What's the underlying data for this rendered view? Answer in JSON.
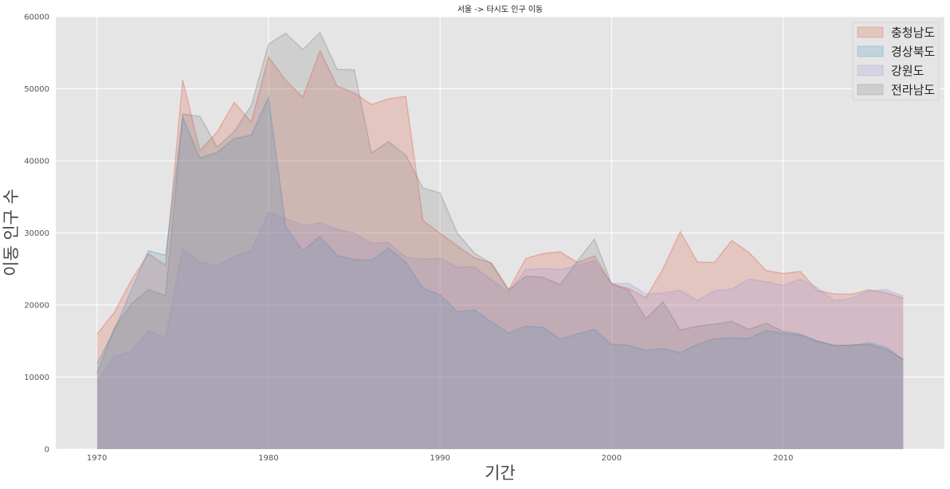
{
  "chart_data": {
    "type": "area",
    "title": "서울 -> 타시도 인구 이동",
    "xlabel": "기간",
    "ylabel": "이동 인구 수",
    "xlim": [
      1967.6,
      2019.4
    ],
    "ylim": [
      0,
      60000
    ],
    "xticks": [
      1970,
      1980,
      1990,
      2000,
      2010
    ],
    "yticks": [
      0,
      10000,
      20000,
      30000,
      40000,
      50000,
      60000
    ],
    "grid": true,
    "stacked": false,
    "legend_position": "top-right",
    "x": [
      1970,
      1971,
      1972,
      1973,
      1974,
      1975,
      1976,
      1977,
      1978,
      1979,
      1980,
      1981,
      1982,
      1983,
      1984,
      1985,
      1986,
      1987,
      1988,
      1989,
      1990,
      1991,
      1992,
      1993,
      1994,
      1995,
      1996,
      1997,
      1998,
      1999,
      2000,
      2001,
      2002,
      2003,
      2004,
      2005,
      2006,
      2007,
      2008,
      2009,
      2010,
      2011,
      2012,
      2013,
      2014,
      2015,
      2016,
      2017
    ],
    "series": [
      {
        "name": "충청남도",
        "color": "#e24a33",
        "values": [
          15954,
          18943,
          23406,
          27139,
          25509,
          51205,
          41447,
          43993,
          48091,
          45388,
          54436,
          51180,
          48817,
          55272,
          50379,
          49423,
          47813,
          48605,
          48966,
          31744,
          29947,
          28217,
          26549,
          25827,
          22099,
          26467,
          27142,
          27395,
          25906,
          26819,
          22913,
          22300,
          21002,
          25046,
          30172,
          25950,
          25910,
          28965,
          27312,
          24806,
          24376,
          24658,
          22015,
          21528,
          21512,
          22098,
          21710,
          20932
        ]
      },
      {
        "name": "경상북도",
        "color": "#348abd",
        "values": [
          11868,
          16459,
          22073,
          27531,
          26902,
          46109,
          40421,
          41184,
          43090,
          43574,
          48806,
          30920,
          27546,
          29544,
          26874,
          26325,
          26231,
          27896,
          25982,
          22336,
          21419,
          19078,
          19332,
          17670,
          16111,
          17054,
          16921,
          15276,
          16001,
          16605,
          14580,
          14427,
          13713,
          13956,
          13394,
          14553,
          15325,
          15441,
          15393,
          16494,
          16080,
          15800,
          14975,
          14418,
          14411,
          14745,
          14149,
          12433
        ]
      },
      {
        "name": "강원도",
        "color": "#988ed5",
        "values": [
          9352,
          12885,
          13561,
          16481,
          15479,
          27837,
          25927,
          25415,
          26739,
          27567,
          32875,
          32035,
          31010,
          31384,
          30529,
          29951,
          28555,
          28642,
          26655,
          26311,
          26508,
          25230,
          25277,
          23524,
          21758,
          24937,
          25074,
          24935,
          25506,
          26137,
          23025,
          22988,
          21530,
          21653,
          22041,
          20602,
          21961,
          22204,
          23602,
          23234,
          22719,
          23597,
          22367,
          20594,
          20941,
          21914,
          22133,
          21215
        ]
      },
      {
        "name": "전라남도",
        "color": "#777777",
        "values": [
          10513,
          16755,
          20157,
          22160,
          21314,
          46504,
          46200,
          41917,
          44063,
          47703,
          56186,
          57719,
          55432,
          57818,
          52706,
          52629,
          41099,
          42662,
          40816,
          36231,
          35554,
          29997,
          27212,
          25737,
          22111,
          24019,
          23837,
          22837,
          26075,
          29150,
          22958,
          22022,
          18121,
          20446,
          16546,
          17068,
          17349,
          17743,
          16601,
          17482,
          16344,
          15985,
          14992,
          14335,
          14479,
          14525,
          13839,
          12472
        ]
      }
    ]
  }
}
